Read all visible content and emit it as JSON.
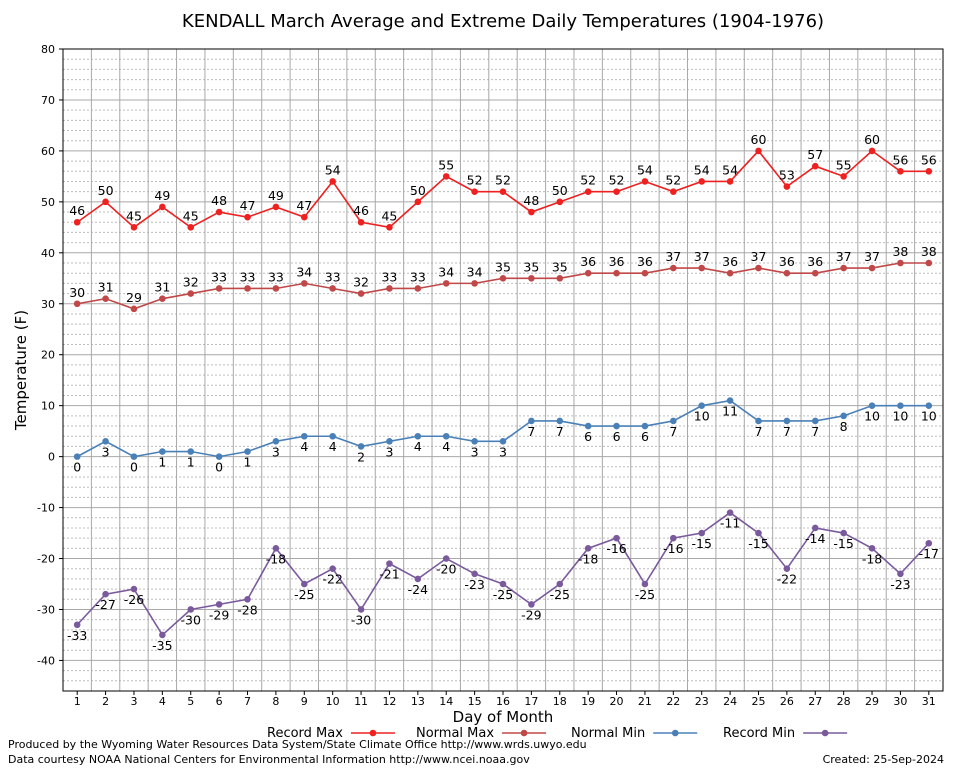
{
  "chart_data": {
    "type": "line",
    "title": "KENDALL March Average and Extreme Daily Temperatures (1904-1976)",
    "xlabel": "Day of Month",
    "ylabel": "Temperature (F)",
    "ylim": [
      -46,
      80
    ],
    "yticks": [
      -40,
      -30,
      -20,
      -10,
      0,
      10,
      20,
      30,
      40,
      50,
      60,
      70,
      80
    ],
    "grid": true,
    "legend_position": "bottom",
    "x": [
      "1",
      "2",
      "3",
      "4",
      "5",
      "6",
      "7",
      "8",
      "9",
      "10",
      "11",
      "12",
      "13",
      "14",
      "15",
      "16",
      "17",
      "18",
      "19",
      "20",
      "21",
      "22",
      "23",
      "24",
      "25",
      "26",
      "27",
      "28",
      "29",
      "30",
      "31"
    ],
    "series": [
      {
        "name": "Record Max",
        "color": "#ee2020",
        "label_position": "above",
        "values": [
          46,
          50,
          45,
          49,
          45,
          48,
          47,
          49,
          47,
          54,
          46,
          45,
          50,
          55,
          52,
          52,
          48,
          50,
          52,
          52,
          54,
          52,
          54,
          54,
          60,
          53,
          57,
          55,
          60,
          56,
          56
        ]
      },
      {
        "name": "Normal Max",
        "color": "#c04848",
        "label_position": "above",
        "values": [
          30,
          31,
          29,
          31,
          32,
          33,
          33,
          33,
          34,
          33,
          32,
          33,
          33,
          34,
          34,
          35,
          35,
          35,
          36,
          36,
          36,
          37,
          37,
          36,
          37,
          36,
          36,
          37,
          37,
          38,
          38
        ]
      },
      {
        "name": "Normal Min",
        "color": "#4a80b8",
        "label_position": "below",
        "values": [
          0,
          3,
          0,
          1,
          1,
          0,
          1,
          3,
          4,
          4,
          2,
          3,
          4,
          4,
          3,
          3,
          7,
          7,
          6,
          6,
          6,
          7,
          10,
          11,
          7,
          7,
          7,
          8,
          10,
          10,
          10
        ]
      },
      {
        "name": "Record Min",
        "color": "#7a5a9c",
        "label_position": "below",
        "values": [
          -33,
          -27,
          -26,
          -35,
          -30,
          -29,
          -28,
          -18,
          -25,
          -22,
          -30,
          -21,
          -24,
          -20,
          -23,
          -25,
          -29,
          -25,
          -18,
          -16,
          -25,
          -16,
          -15,
          -11,
          -15,
          -22,
          -14,
          -15,
          -18,
          -23,
          -17
        ]
      }
    ]
  },
  "footer": {
    "produced_by": "Produced by the Wyoming Water Resources Data System/State Climate Office http://www.wrds.uwyo.edu",
    "courtesy": "Data courtesy NOAA National Centers for Environmental Information http://www.ncei.noaa.gov",
    "created": "Created:  25-Sep-2024"
  }
}
